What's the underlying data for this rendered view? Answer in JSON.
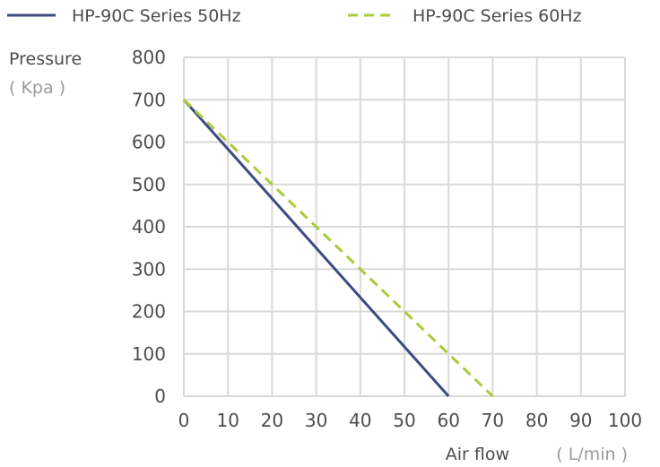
{
  "chart_data": {
    "type": "line",
    "xlabel": "Air flow",
    "xunit": "( L/min )",
    "ylabel": "Pressure",
    "yunit": "( Kpa )",
    "xlim": [
      0,
      100
    ],
    "ylim": [
      0,
      800
    ],
    "xticks": [
      "0",
      "10",
      "20",
      "30",
      "40",
      "50",
      "60",
      "70",
      "80",
      "90",
      "100"
    ],
    "yticks": [
      "0",
      "100",
      "200",
      "300",
      "400",
      "500",
      "600",
      "700",
      "800"
    ],
    "grid": true,
    "legend_position": "top",
    "series": [
      {
        "name": "HP-90C  Series 50Hz",
        "color": "#3d4a82",
        "style": "solid",
        "points": [
          [
            0,
            700
          ],
          [
            60,
            0
          ]
        ]
      },
      {
        "name": "HP-90C  Series 60Hz",
        "color": "#a8cc3a",
        "style": "dashed",
        "points": [
          [
            0,
            700
          ],
          [
            70,
            0
          ]
        ]
      }
    ],
    "grid_color": "#d9d9d9"
  }
}
